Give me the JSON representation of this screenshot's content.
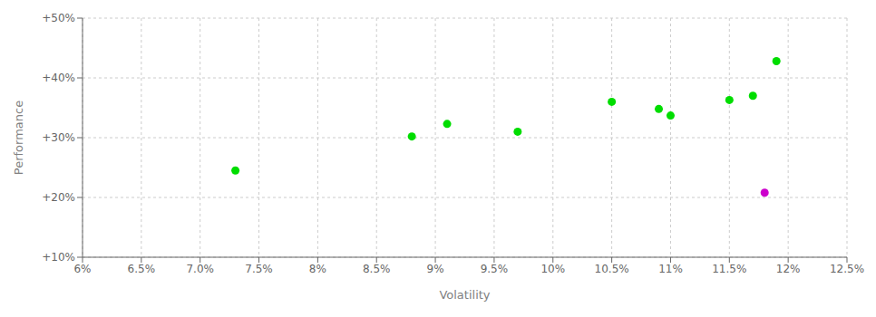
{
  "chart_data": {
    "type": "scatter",
    "xlabel": "Volatility",
    "ylabel": "Performance",
    "xlim": [
      0.06,
      0.125
    ],
    "ylim": [
      0.1,
      0.5
    ],
    "xticks": [
      {
        "value": 0.06,
        "label": "6%"
      },
      {
        "value": 0.065,
        "label": "6.5%"
      },
      {
        "value": 0.07,
        "label": "7.0%"
      },
      {
        "value": 0.075,
        "label": "7.5%"
      },
      {
        "value": 0.08,
        "label": "8%"
      },
      {
        "value": 0.085,
        "label": "8.5%"
      },
      {
        "value": 0.09,
        "label": "9%"
      },
      {
        "value": 0.095,
        "label": "9.5%"
      },
      {
        "value": 0.1,
        "label": "10%"
      },
      {
        "value": 0.105,
        "label": "10.5%"
      },
      {
        "value": 0.11,
        "label": "11%"
      },
      {
        "value": 0.115,
        "label": "11.5%"
      },
      {
        "value": 0.12,
        "label": "12%"
      },
      {
        "value": 0.125,
        "label": "12.5%"
      }
    ],
    "yticks": [
      {
        "value": 0.1,
        "label": "+10%"
      },
      {
        "value": 0.2,
        "label": "+20%"
      },
      {
        "value": 0.3,
        "label": "+30%"
      },
      {
        "value": 0.4,
        "label": "+40%"
      },
      {
        "value": 0.5,
        "label": "+50%"
      }
    ],
    "grid": true,
    "series": [
      {
        "color": "#00dd00",
        "x": [
          0.073,
          0.088,
          0.091,
          0.097,
          0.105,
          0.109,
          0.11,
          0.115,
          0.117,
          0.119
        ],
        "values": [
          0.245,
          0.302,
          0.323,
          0.31,
          0.36,
          0.348,
          0.337,
          0.363,
          0.37,
          0.428
        ]
      },
      {
        "color": "#cc00cc",
        "x": [
          0.118
        ],
        "values": [
          0.208
        ]
      }
    ]
  }
}
